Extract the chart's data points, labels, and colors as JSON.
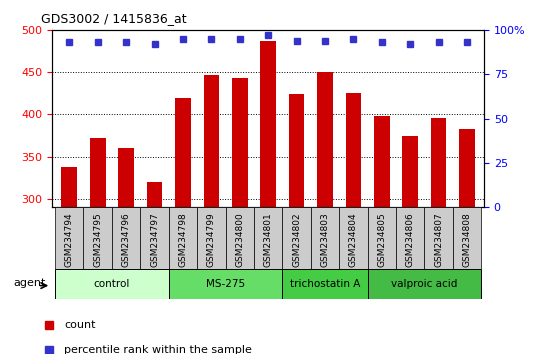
{
  "title": "GDS3002 / 1415836_at",
  "samples": [
    "GSM234794",
    "GSM234795",
    "GSM234796",
    "GSM234797",
    "GSM234798",
    "GSM234799",
    "GSM234800",
    "GSM234801",
    "GSM234802",
    "GSM234803",
    "GSM234804",
    "GSM234805",
    "GSM234806",
    "GSM234807",
    "GSM234808"
  ],
  "counts": [
    338,
    372,
    360,
    320,
    420,
    447,
    443,
    487,
    424,
    450,
    425,
    398,
    374,
    396,
    383
  ],
  "percentiles": [
    93,
    93,
    93,
    92,
    95,
    95,
    95,
    97,
    94,
    94,
    95,
    93,
    92,
    93,
    93
  ],
  "bar_color": "#cc0000",
  "dot_color": "#3333cc",
  "ylim_left": [
    290,
    500
  ],
  "ylim_right": [
    0,
    100
  ],
  "yticks_left": [
    300,
    350,
    400,
    450,
    500
  ],
  "yticks_right": [
    0,
    25,
    50,
    75,
    100
  ],
  "groups": [
    {
      "label": "control",
      "start": 0,
      "end": 4,
      "color": "#ccffcc"
    },
    {
      "label": "MS-275",
      "start": 4,
      "end": 8,
      "color": "#66dd66"
    },
    {
      "label": "trichostatin A",
      "start": 8,
      "end": 11,
      "color": "#44cc44"
    },
    {
      "label": "valproic acid",
      "start": 11,
      "end": 15,
      "color": "#44bb44"
    }
  ],
  "agent_label": "agent",
  "legend_count_label": "count",
  "legend_pct_label": "percentile rank within the sample",
  "plot_bg": "#ffffff",
  "label_bg": "#cccccc"
}
